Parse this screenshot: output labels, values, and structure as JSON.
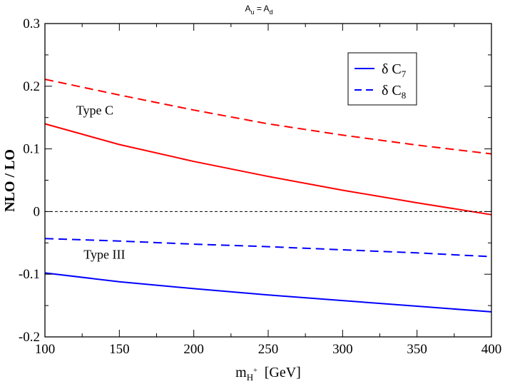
{
  "chart_data": {
    "type": "line",
    "title": {
      "main": "A",
      "sub1": "u",
      "eq": " = A",
      "sub2": "d"
    },
    "xlabel": {
      "main": "m",
      "sub": "H",
      "sup": "+",
      "unit": "[GeV]"
    },
    "ylabel": "NLO / LO",
    "xlim": [
      100,
      400
    ],
    "ylim": [
      -0.2,
      0.3
    ],
    "xticks": [
      100,
      150,
      200,
      250,
      300,
      350,
      400
    ],
    "xtick_labels": [
      "100",
      "150",
      "200",
      "250",
      "300",
      "350",
      "400"
    ],
    "yticks": [
      -0.2,
      -0.1,
      0,
      0.1,
      0.2,
      0.3
    ],
    "ytick_labels": [
      "-0.2",
      "-0.1",
      "0",
      "0.1",
      "0.2",
      "0.3"
    ],
    "reference_line": {
      "y": 0,
      "style": "dashed",
      "color": "#000000"
    },
    "annotations": [
      {
        "text": "Type C",
        "x": 121,
        "y": 0.155
      },
      {
        "text": "Type III",
        "x": 126,
        "y": -0.075
      }
    ],
    "legend": {
      "position": "top-right",
      "entries": [
        {
          "label_main": "δ C",
          "label_sub": "7",
          "style": "solid"
        },
        {
          "label_main": "δ C",
          "label_sub": "8",
          "style": "dashed"
        }
      ]
    },
    "series": [
      {
        "group": "Type C",
        "style": "dashed",
        "color": "#ff0000",
        "x": [
          100,
          150,
          200,
          250,
          300,
          350,
          400
        ],
        "y": [
          0.211,
          0.186,
          0.162,
          0.14,
          0.122,
          0.106,
          0.092
        ]
      },
      {
        "group": "Type C",
        "style": "solid",
        "color": "#ff0000",
        "x": [
          100,
          150,
          200,
          250,
          300,
          350,
          400
        ],
        "y": [
          0.14,
          0.107,
          0.08,
          0.056,
          0.034,
          0.014,
          -0.005
        ]
      },
      {
        "group": "Type III",
        "style": "dashed",
        "color": "#0000ff",
        "x": [
          100,
          150,
          200,
          250,
          300,
          350,
          400
        ],
        "y": [
          -0.043,
          -0.047,
          -0.052,
          -0.056,
          -0.061,
          -0.066,
          -0.072
        ]
      },
      {
        "group": "Type III",
        "style": "solid",
        "color": "#0000ff",
        "x": [
          100,
          150,
          200,
          250,
          300,
          350,
          400
        ],
        "y": [
          -0.098,
          -0.112,
          -0.123,
          -0.133,
          -0.142,
          -0.151,
          -0.16
        ]
      }
    ]
  }
}
